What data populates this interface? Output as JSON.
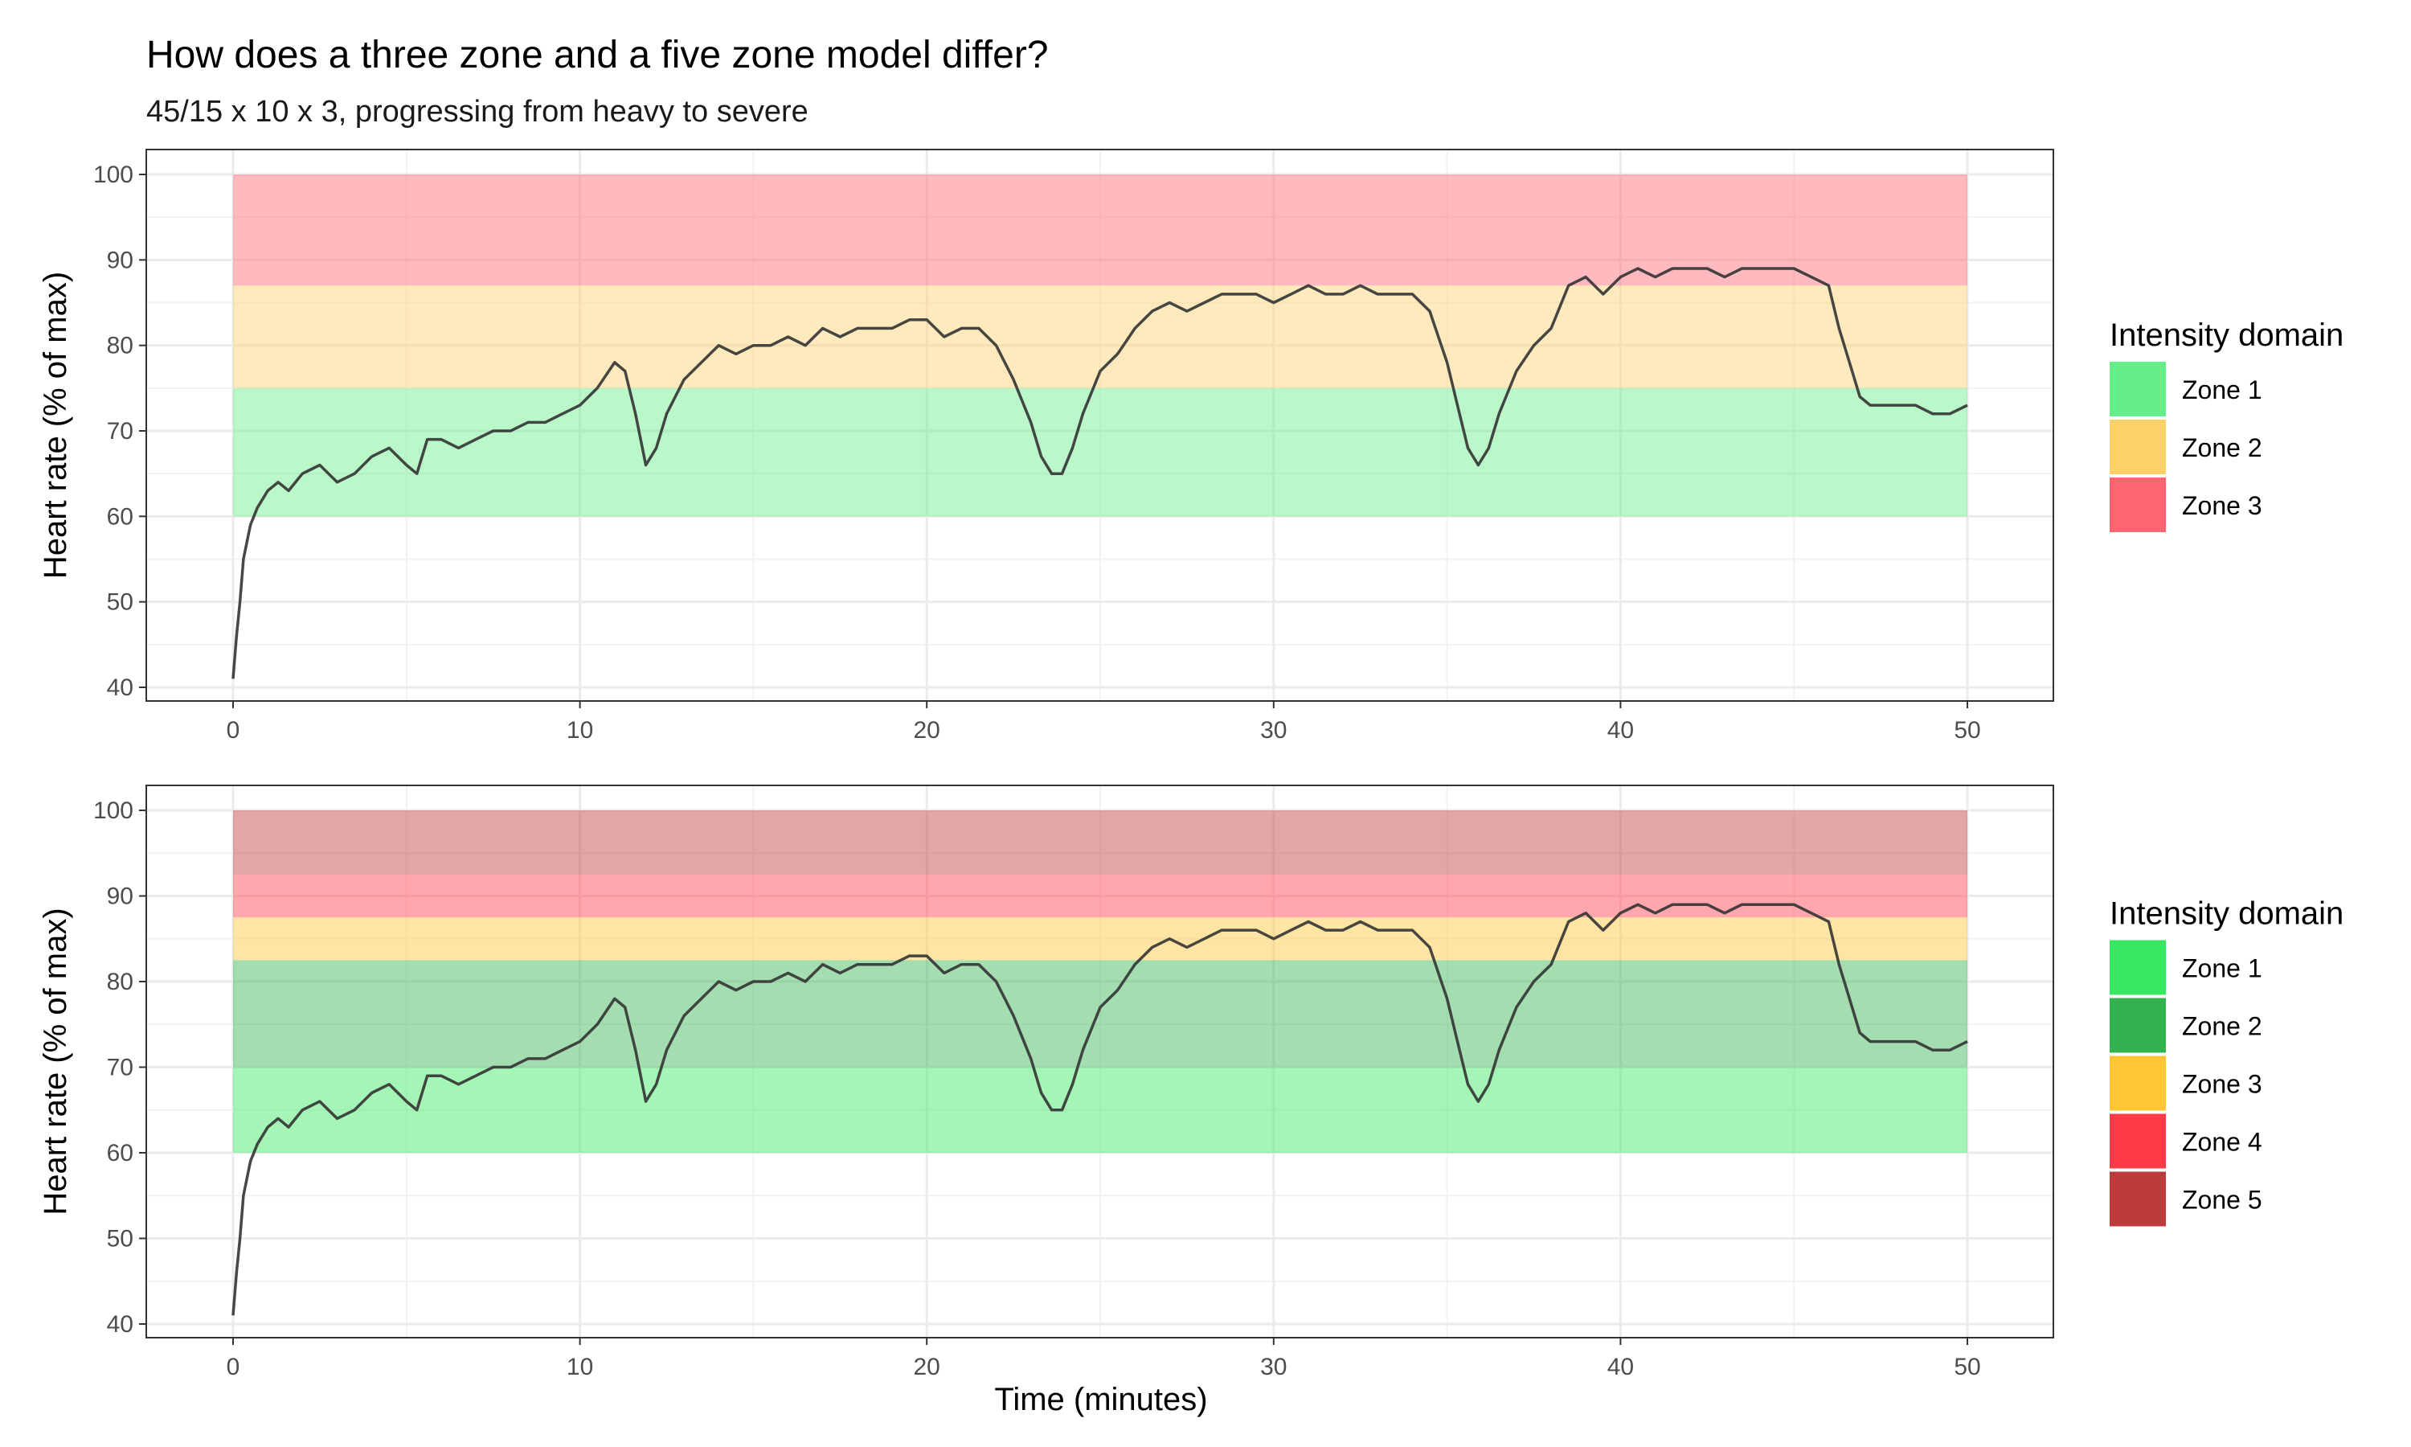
{
  "chart_data": {
    "type": "line",
    "title": "How does a three zone and a five zone model differ?",
    "subtitle": "45/15 x 10 x 3, progressing from heavy to severe",
    "xlabel": "Time (minutes)",
    "ylabel": "Heart rate (% of max)",
    "xlim": [
      0,
      50
    ],
    "ylim": [
      40,
      100
    ],
    "x_ticks": [
      0,
      10,
      20,
      30,
      40,
      50
    ],
    "y_ticks": [
      40,
      50,
      60,
      70,
      80,
      90,
      100
    ],
    "grid": true,
    "legend_position": "right",
    "legend_title": "Intensity domain",
    "heart_rate_series": {
      "name": "",
      "x": [
        0,
        0.1,
        0.2,
        0.3,
        0.5,
        0.7,
        1.0,
        1.3,
        1.6,
        2.0,
        2.5,
        3.0,
        3.5,
        4.0,
        4.5,
        5.0,
        5.3,
        5.6,
        6.0,
        6.5,
        7.0,
        7.5,
        8.0,
        8.5,
        9.0,
        9.5,
        10.0,
        10.5,
        11.0,
        11.3,
        11.6,
        11.9,
        12.2,
        12.5,
        13.0,
        13.5,
        14.0,
        14.5,
        15.0,
        15.5,
        16.0,
        16.5,
        17.0,
        17.5,
        18.0,
        18.5,
        19.0,
        19.5,
        20.0,
        20.5,
        21.0,
        21.5,
        22.0,
        22.5,
        23.0,
        23.3,
        23.6,
        23.9,
        24.2,
        24.5,
        25.0,
        25.5,
        26.0,
        26.5,
        27.0,
        27.5,
        28.0,
        28.5,
        29.0,
        29.5,
        30.0,
        30.5,
        31.0,
        31.5,
        32.0,
        32.5,
        33.0,
        33.5,
        34.0,
        34.5,
        35.0,
        35.3,
        35.6,
        35.9,
        36.2,
        36.5,
        37.0,
        37.5,
        38.0,
        38.5,
        39.0,
        39.5,
        40.0,
        40.5,
        41.0,
        41.5,
        42.0,
        42.5,
        43.0,
        43.5,
        44.0,
        44.5,
        45.0,
        45.5,
        46.0,
        46.3,
        46.6,
        46.9,
        47.2,
        47.5,
        48.0,
        48.5,
        49.0,
        49.5,
        50.0
      ],
      "y": [
        41,
        46,
        50,
        55,
        59,
        61,
        63,
        64,
        63,
        65,
        66,
        64,
        65,
        67,
        68,
        66,
        65,
        69,
        69,
        68,
        69,
        70,
        70,
        71,
        71,
        72,
        73,
        75,
        78,
        77,
        72,
        66,
        68,
        72,
        76,
        78,
        80,
        79,
        80,
        80,
        81,
        80,
        82,
        81,
        82,
        82,
        82,
        83,
        83,
        81,
        82,
        82,
        80,
        76,
        71,
        67,
        65,
        65,
        68,
        72,
        77,
        79,
        82,
        84,
        85,
        84,
        85,
        86,
        86,
        86,
        85,
        86,
        87,
        86,
        86,
        87,
        86,
        86,
        86,
        84,
        78,
        73,
        68,
        66,
        68,
        72,
        77,
        80,
        82,
        87,
        88,
        86,
        88,
        89,
        88,
        89,
        89,
        89,
        88,
        89,
        89,
        89,
        89,
        88,
        87,
        82,
        78,
        74,
        73,
        73,
        73,
        73,
        72,
        72,
        73
      ]
    },
    "panels": [
      {
        "model": "three zone",
        "bands": [
          {
            "name": "Zone 1",
            "ymin": 60,
            "ymax": 75,
            "color": "#66EE88"
          },
          {
            "name": "Zone 2",
            "ymin": 75,
            "ymax": 87,
            "color": "#FDD16A"
          },
          {
            "name": "Zone 3",
            "ymin": 87,
            "ymax": 100,
            "color": "#FF6670"
          }
        ]
      },
      {
        "model": "five zone",
        "bands": [
          {
            "name": "Zone 1",
            "ymin": 60,
            "ymax": 70,
            "color": "#38E860"
          },
          {
            "name": "Zone 2",
            "ymin": 70,
            "ymax": 82.5,
            "color": "#33B34F"
          },
          {
            "name": "Zone 3",
            "ymin": 82.5,
            "ymax": 87.5,
            "color": "#FFC533"
          },
          {
            "name": "Zone 4",
            "ymin": 87.5,
            "ymax": 92.5,
            "color": "#FF3B47"
          },
          {
            "name": "Zone 5",
            "ymin": 92.5,
            "ymax": 100,
            "color": "#BD3B3B"
          }
        ]
      }
    ]
  }
}
